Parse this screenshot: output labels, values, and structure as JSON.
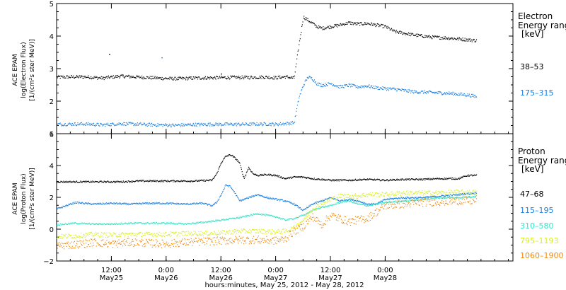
{
  "chart_data": [
    {
      "type": "scatter",
      "panel": "electron",
      "ylabel": [
        "ACE EPAM",
        "log(Electron Flux)",
        "[1/(cm²s ster MeV)]"
      ],
      "ylim": [
        1,
        5
      ],
      "yticks": [
        "1",
        "2",
        "3",
        "4",
        "5"
      ],
      "legend_title": [
        "Electron",
        "Energy range",
        "[keV]"
      ],
      "series": [
        {
          "name": "38–53",
          "color": "#000000",
          "points": [
            [
              0,
              2.75
            ],
            [
              6,
              2.76
            ],
            [
              10,
              2.72
            ],
            [
              14,
              2.78
            ],
            [
              18,
              2.75
            ],
            [
              22,
              2.72
            ],
            [
              26,
              2.7
            ],
            [
              30,
              2.72
            ],
            [
              34,
              2.73
            ],
            [
              38,
              2.74
            ],
            [
              42,
              2.74
            ],
            [
              46,
              2.75
            ],
            [
              48,
              2.73
            ],
            [
              50,
              2.76
            ],
            [
              52,
              2.72
            ],
            [
              53,
              3.7
            ],
            [
              54,
              4.6
            ],
            [
              55,
              4.5
            ],
            [
              56,
              4.4
            ],
            [
              57,
              4.3
            ],
            [
              58,
              4.25
            ],
            [
              60,
              4.3
            ],
            [
              62,
              4.35
            ],
            [
              64,
              4.42
            ],
            [
              66,
              4.38
            ],
            [
              68,
              4.4
            ],
            [
              70,
              4.35
            ],
            [
              72,
              4.3
            ],
            [
              74,
              4.15
            ],
            [
              78,
              4.05
            ],
            [
              82,
              3.98
            ],
            [
              86,
              3.95
            ],
            [
              90,
              3.9
            ],
            [
              92,
              3.87
            ]
          ],
          "outliers": [
            [
              11.5,
              3.45
            ],
            [
              36,
              2.85
            ]
          ]
        },
        {
          "name": "175–315",
          "color": "#1a7fe0",
          "points": [
            [
              0,
              1.3
            ],
            [
              6,
              1.31
            ],
            [
              10,
              1.28
            ],
            [
              14,
              1.32
            ],
            [
              18,
              1.3
            ],
            [
              22,
              1.28
            ],
            [
              26,
              1.27
            ],
            [
              30,
              1.29
            ],
            [
              34,
              1.3
            ],
            [
              38,
              1.3
            ],
            [
              42,
              1.3
            ],
            [
              46,
              1.31
            ],
            [
              48,
              1.3
            ],
            [
              50,
              1.32
            ],
            [
              52,
              1.35
            ],
            [
              53,
              2.1
            ],
            [
              54,
              2.5
            ],
            [
              55,
              2.75
            ],
            [
              56,
              2.7
            ],
            [
              57,
              2.55
            ],
            [
              58,
              2.5
            ],
            [
              60,
              2.55
            ],
            [
              62,
              2.45
            ],
            [
              64,
              2.5
            ],
            [
              66,
              2.45
            ],
            [
              68,
              2.48
            ],
            [
              70,
              2.42
            ],
            [
              72,
              2.4
            ],
            [
              74,
              2.38
            ],
            [
              78,
              2.3
            ],
            [
              82,
              2.28
            ],
            [
              86,
              2.25
            ],
            [
              90,
              2.2
            ],
            [
              92,
              2.15
            ]
          ],
          "outliers": [
            [
              23,
              3.35
            ]
          ]
        }
      ]
    },
    {
      "type": "scatter",
      "panel": "proton",
      "ylabel": [
        "ACE EPAM",
        "log(Proton Flux)",
        "[1/(cm²s ster MeV)]"
      ],
      "ylim": [
        -2,
        6
      ],
      "yticks": [
        "−2",
        "0",
        "2",
        "4",
        "6"
      ],
      "legend_title": [
        "Proton",
        "Energy range",
        "[keV]"
      ],
      "series": [
        {
          "name": "47–68",
          "color": "#000000",
          "points": [
            [
              0,
              3.0
            ],
            [
              6,
              3.0
            ],
            [
              10,
              3.0
            ],
            [
              14,
              3.0
            ],
            [
              18,
              3.05
            ],
            [
              22,
              3.05
            ],
            [
              26,
              3.05
            ],
            [
              30,
              3.05
            ],
            [
              34,
              3.1
            ],
            [
              35,
              3.5
            ],
            [
              36,
              4.2
            ],
            [
              37,
              4.6
            ],
            [
              38,
              4.7
            ],
            [
              39,
              4.5
            ],
            [
              40,
              4.2
            ],
            [
              41,
              3.2
            ],
            [
              42,
              3.9
            ],
            [
              43,
              3.5
            ],
            [
              44,
              3.4
            ],
            [
              46,
              3.45
            ],
            [
              48,
              3.4
            ],
            [
              50,
              3.2
            ],
            [
              52,
              3.3
            ],
            [
              54,
              3.3
            ],
            [
              56,
              3.2
            ],
            [
              60,
              3.1
            ],
            [
              64,
              3.1
            ],
            [
              68,
              3.15
            ],
            [
              72,
              3.1
            ],
            [
              76,
              3.15
            ],
            [
              80,
              3.15
            ],
            [
              84,
              3.2
            ],
            [
              88,
              3.2
            ],
            [
              90,
              3.4
            ],
            [
              92,
              3.4
            ]
          ]
        },
        {
          "name": "115–195",
          "color": "#1a7fe0",
          "points": [
            [
              0,
              1.3
            ],
            [
              4,
              1.7
            ],
            [
              8,
              1.6
            ],
            [
              12,
              1.65
            ],
            [
              16,
              1.6
            ],
            [
              20,
              1.65
            ],
            [
              24,
              1.65
            ],
            [
              28,
              1.6
            ],
            [
              32,
              1.65
            ],
            [
              34,
              1.5
            ],
            [
              35,
              1.7
            ],
            [
              36,
              2.2
            ],
            [
              37,
              2.8
            ],
            [
              38,
              2.7
            ],
            [
              39,
              2.3
            ],
            [
              40,
              1.8
            ],
            [
              42,
              2.0
            ],
            [
              44,
              2.2
            ],
            [
              46,
              2.0
            ],
            [
              48,
              1.9
            ],
            [
              50,
              1.8
            ],
            [
              52,
              1.6
            ],
            [
              54,
              1.2
            ],
            [
              56,
              1.6
            ],
            [
              58,
              1.8
            ],
            [
              60,
              2.0
            ],
            [
              62,
              1.8
            ],
            [
              64,
              1.9
            ],
            [
              66,
              1.8
            ],
            [
              68,
              1.6
            ],
            [
              70,
              1.6
            ],
            [
              72,
              1.9
            ],
            [
              76,
              2.0
            ],
            [
              80,
              2.0
            ],
            [
              84,
              2.1
            ],
            [
              88,
              2.2
            ],
            [
              92,
              2.3
            ]
          ]
        },
        {
          "name": "310–580",
          "color": "#35e3c8",
          "points": [
            [
              0,
              0.3
            ],
            [
              4,
              0.4
            ],
            [
              8,
              0.35
            ],
            [
              12,
              0.35
            ],
            [
              16,
              0.4
            ],
            [
              20,
              0.4
            ],
            [
              24,
              0.4
            ],
            [
              28,
              0.35
            ],
            [
              32,
              0.45
            ],
            [
              36,
              0.6
            ],
            [
              40,
              0.75
            ],
            [
              44,
              1.0
            ],
            [
              48,
              0.8
            ],
            [
              50,
              0.6
            ],
            [
              52,
              0.7
            ],
            [
              54,
              0.9
            ],
            [
              56,
              1.2
            ],
            [
              58,
              1.4
            ],
            [
              60,
              1.5
            ],
            [
              62,
              1.7
            ],
            [
              64,
              1.8
            ],
            [
              66,
              1.6
            ],
            [
              68,
              1.5
            ],
            [
              70,
              1.6
            ],
            [
              72,
              1.7
            ],
            [
              76,
              1.8
            ],
            [
              80,
              1.9
            ],
            [
              84,
              2.0
            ],
            [
              88,
              2.0
            ],
            [
              92,
              2.1
            ]
          ]
        },
        {
          "name": "795–1193",
          "color": "#d8ee22",
          "points": [
            [
              0,
              -0.45
            ],
            [
              4,
              -0.4
            ],
            [
              8,
              -0.3
            ],
            [
              12,
              -0.35
            ],
            [
              16,
              -0.3
            ],
            [
              20,
              -0.3
            ],
            [
              24,
              -0.3
            ],
            [
              28,
              -0.25
            ],
            [
              32,
              -0.25
            ],
            [
              36,
              -0.2
            ],
            [
              40,
              -0.1
            ],
            [
              44,
              -0.1
            ],
            [
              48,
              -0.15
            ],
            [
              50,
              -0.1
            ],
            [
              52,
              0.1
            ],
            [
              54,
              0.6
            ],
            [
              56,
              1.3
            ],
            [
              58,
              1.6
            ],
            [
              60,
              1.9
            ],
            [
              62,
              2.1
            ],
            [
              64,
              2.1
            ],
            [
              66,
              2.1
            ],
            [
              68,
              2.2
            ],
            [
              70,
              2.2
            ],
            [
              72,
              2.2
            ],
            [
              76,
              2.3
            ],
            [
              80,
              2.3
            ],
            [
              84,
              2.3
            ],
            [
              88,
              2.35
            ],
            [
              92,
              2.35
            ]
          ]
        },
        {
          "name": "1060–1900",
          "color": "#ef8a10",
          "points": [
            [
              0,
              -1.0
            ],
            [
              4,
              -0.95
            ],
            [
              8,
              -0.8
            ],
            [
              12,
              -0.9
            ],
            [
              16,
              -0.8
            ],
            [
              20,
              -0.85
            ],
            [
              24,
              -0.9
            ],
            [
              28,
              -0.8
            ],
            [
              32,
              -0.75
            ],
            [
              36,
              -0.7
            ],
            [
              40,
              -0.65
            ],
            [
              44,
              -0.65
            ],
            [
              48,
              -0.7
            ],
            [
              50,
              -0.6
            ],
            [
              52,
              -0.1
            ],
            [
              54,
              0.2
            ],
            [
              56,
              0.8
            ],
            [
              58,
              0.3
            ],
            [
              60,
              0.9
            ],
            [
              62,
              0.7
            ],
            [
              64,
              0.5
            ],
            [
              66,
              0.6
            ],
            [
              68,
              0.7
            ],
            [
              70,
              1.1
            ],
            [
              72,
              1.5
            ],
            [
              76,
              1.6
            ],
            [
              80,
              1.7
            ],
            [
              84,
              1.75
            ],
            [
              88,
              1.8
            ],
            [
              92,
              1.8
            ]
          ]
        }
      ]
    }
  ],
  "xaxis": {
    "range_hours": [
      0,
      100
    ],
    "ticks": [
      {
        "hour": 12,
        "time": "12:00",
        "date": "May25"
      },
      {
        "hour": 24,
        "time": "0:00",
        "date": "May26"
      },
      {
        "hour": 36,
        "time": "12:00",
        "date": "May26"
      },
      {
        "hour": 48,
        "time": "0:00",
        "date": "May27"
      },
      {
        "hour": 60,
        "time": "12:00",
        "date": "May27"
      },
      {
        "hour": 72,
        "time": "0:00",
        "date": "May28"
      }
    ],
    "label": "hours:minutes, May 25, 2012 - May 28, 2012"
  }
}
